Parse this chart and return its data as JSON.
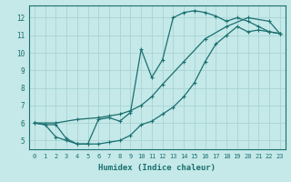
{
  "xlabel": "Humidex (Indice chaleur)",
  "bg_color": "#c5e8e8",
  "grid_color": "#a8d4d4",
  "line_color": "#1a7070",
  "xlim": [
    -0.5,
    23.5
  ],
  "ylim": [
    4.5,
    12.7
  ],
  "xticks": [
    0,
    1,
    2,
    3,
    4,
    5,
    6,
    7,
    8,
    9,
    10,
    11,
    12,
    13,
    14,
    15,
    16,
    17,
    18,
    19,
    20,
    21,
    22,
    23
  ],
  "yticks": [
    5,
    6,
    7,
    8,
    9,
    10,
    11,
    12
  ],
  "series1_x": [
    0,
    1,
    2,
    3,
    4,
    5,
    6,
    7,
    8,
    9,
    10,
    11,
    12,
    13,
    14,
    15,
    16,
    17,
    18,
    19,
    20,
    21,
    22,
    23
  ],
  "series1_y": [
    6.0,
    5.9,
    5.9,
    5.1,
    4.8,
    4.8,
    4.8,
    4.9,
    5.0,
    5.3,
    5.9,
    6.1,
    6.5,
    6.9,
    7.5,
    8.3,
    9.5,
    10.5,
    11.0,
    11.5,
    11.2,
    11.3,
    11.2,
    11.1
  ],
  "series2_x": [
    0,
    2,
    4,
    6,
    7,
    8,
    9,
    10,
    11,
    12,
    14,
    16,
    18,
    20,
    22,
    23
  ],
  "series2_y": [
    6.0,
    6.0,
    6.2,
    6.3,
    6.4,
    6.5,
    6.7,
    7.0,
    7.5,
    8.2,
    9.5,
    10.8,
    11.5,
    12.0,
    11.8,
    11.1
  ],
  "series3_x": [
    0,
    1,
    2,
    3,
    4,
    5,
    6,
    7,
    8,
    9,
    10,
    11,
    12,
    13,
    14,
    15,
    16,
    17,
    18,
    19,
    20,
    21,
    22,
    23
  ],
  "series3_y": [
    6.0,
    5.9,
    5.2,
    5.0,
    4.8,
    4.8,
    6.2,
    6.3,
    6.1,
    6.6,
    10.2,
    8.6,
    9.6,
    12.0,
    12.3,
    12.4,
    12.3,
    12.1,
    11.8,
    12.0,
    11.8,
    11.5,
    11.2,
    11.1
  ]
}
